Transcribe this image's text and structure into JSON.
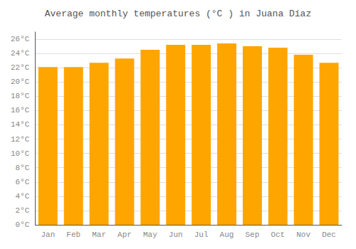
{
  "chart_data": {
    "type": "bar",
    "title": "Average monthly temperatures (°C ) in Juana Díaz",
    "categories": [
      "Jan",
      "Feb",
      "Mar",
      "Apr",
      "May",
      "Jun",
      "Jul",
      "Aug",
      "Sep",
      "Oct",
      "Nov",
      "Dec"
    ],
    "values": [
      22.1,
      22.1,
      22.7,
      23.3,
      24.5,
      25.2,
      25.2,
      25.4,
      25.0,
      24.8,
      23.8,
      22.7
    ],
    "color": "#FFA500",
    "ylim": [
      0,
      27
    ],
    "yticks": [
      {
        "value": 0,
        "label": "0°C"
      },
      {
        "value": 2,
        "label": "2°C"
      },
      {
        "value": 4,
        "label": "4°C"
      },
      {
        "value": 6,
        "label": "6°C"
      },
      {
        "value": 8,
        "label": "8°C"
      },
      {
        "value": 10,
        "label": "10°C"
      },
      {
        "value": 12,
        "label": "12°C"
      },
      {
        "value": 14,
        "label": "14°C"
      },
      {
        "value": 16,
        "label": "16°C"
      },
      {
        "value": 18,
        "label": "18°C"
      },
      {
        "value": 20,
        "label": "20°C"
      },
      {
        "value": 22,
        "label": "22°C"
      },
      {
        "value": 24,
        "label": "24°C"
      },
      {
        "value": 26,
        "label": "26°C"
      }
    ],
    "grid": true
  }
}
